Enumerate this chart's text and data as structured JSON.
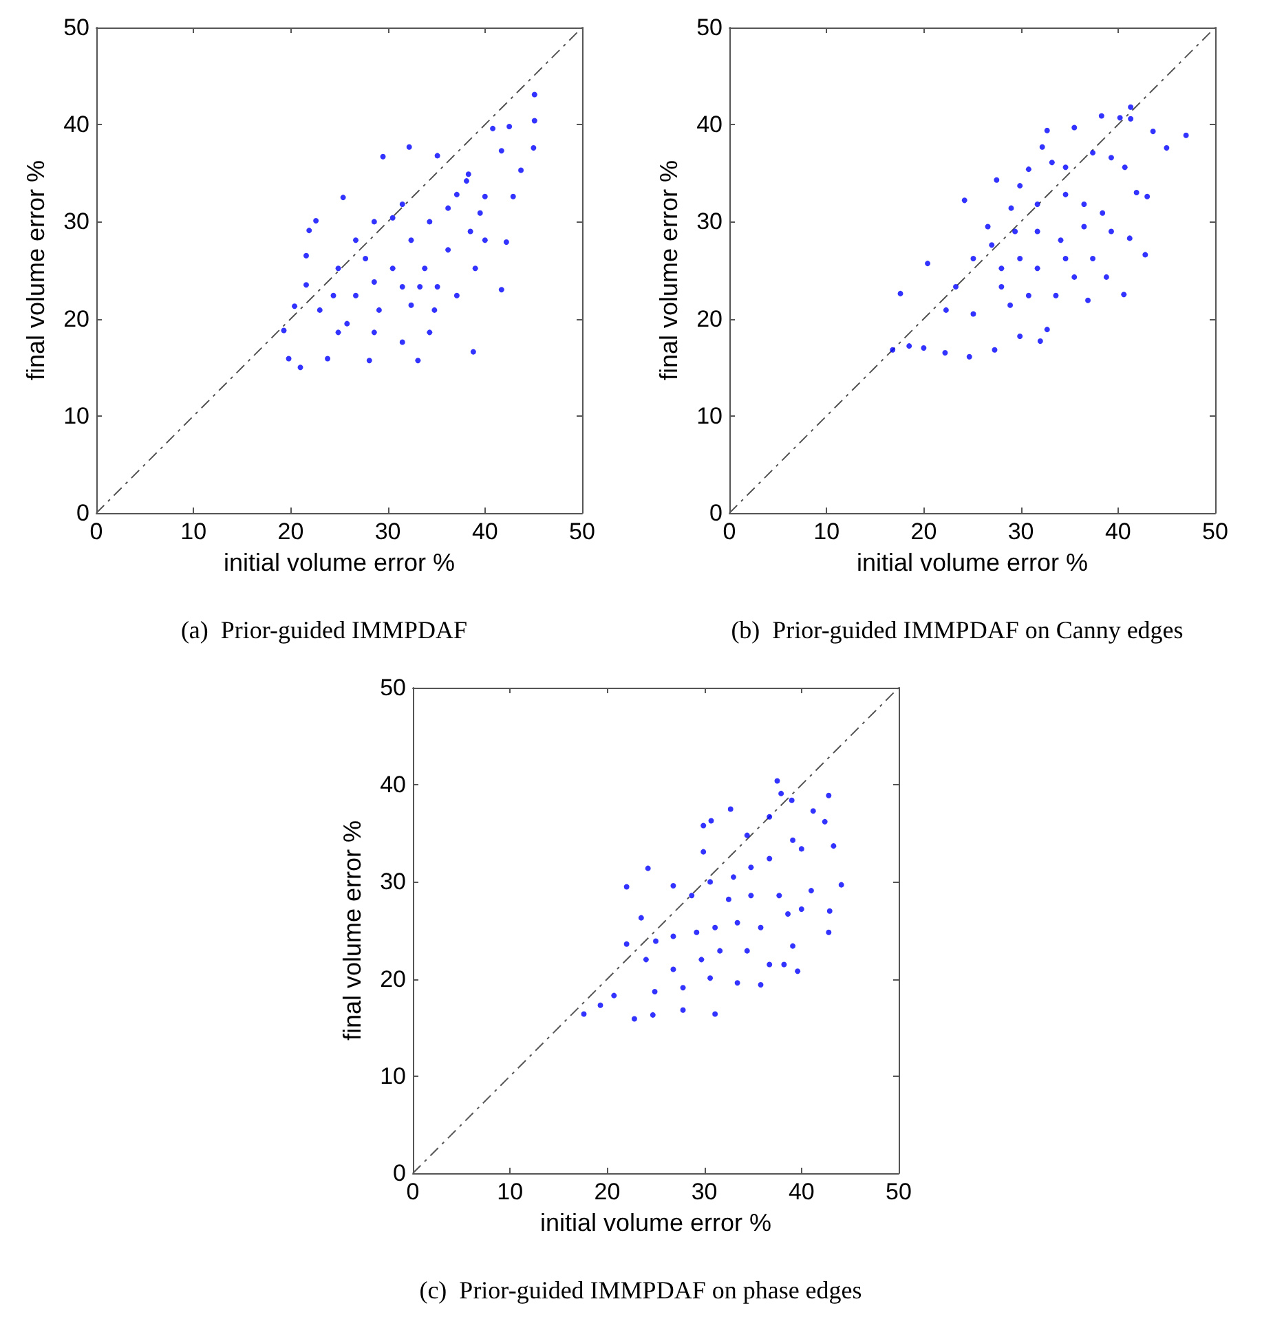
{
  "chart_data": [
    {
      "type": "scatter",
      "title": "(a)  Prior-guided IMMPDAF",
      "xlabel": "initial volume error %",
      "ylabel": "final volume error %",
      "xlim": [
        0,
        50
      ],
      "ylim": [
        0,
        50
      ],
      "xticks": [
        0,
        10,
        20,
        30,
        40,
        50
      ],
      "yticks": [
        0,
        10,
        20,
        30,
        40,
        50
      ],
      "series": [
        {
          "type": "scatter",
          "color": "#0000ff",
          "marker": "circle",
          "x": [
            45.1,
            45.1,
            45.0,
            42.5,
            40.8,
            32.2,
            29.5,
            43.7,
            41.7,
            38.3,
            35.1,
            25.4,
            22.6,
            21.9,
            21.6,
            21.6,
            20.4,
            19.3,
            19.8,
            21.0,
            23.8,
            28.1,
            33.1,
            38.8,
            41.7,
            42.2,
            42.9,
            40.0,
            38.1,
            31.5,
            28.6,
            26.7,
            24.9,
            23.0,
            25.8,
            28.6,
            31.5,
            34.3,
            29.1,
            31.5,
            33.8,
            36.2,
            38.5,
            39.0,
            37.1,
            34.8,
            32.4,
            30.5,
            32.4,
            34.3,
            36.2,
            37.1,
            30.5,
            27.7,
            26.7,
            24.4,
            24.9,
            40.0,
            39.5,
            28.6,
            33.3,
            35.1
          ],
          "values": [
            43.1,
            40.4,
            37.6,
            39.8,
            39.6,
            37.7,
            36.7,
            35.3,
            37.3,
            34.9,
            36.8,
            32.5,
            30.1,
            29.1,
            26.5,
            23.5,
            21.3,
            18.8,
            15.9,
            15.0,
            15.9,
            15.7,
            15.7,
            16.6,
            23.0,
            27.9,
            32.6,
            32.6,
            34.2,
            31.8,
            30.0,
            28.1,
            25.2,
            20.9,
            19.5,
            18.6,
            17.6,
            18.6,
            20.9,
            23.3,
            25.2,
            27.1,
            29.0,
            25.2,
            22.4,
            20.9,
            21.4,
            25.2,
            28.1,
            30.0,
            31.4,
            32.8,
            30.4,
            26.2,
            22.4,
            22.4,
            18.6,
            28.1,
            30.9,
            23.8,
            23.3,
            23.3
          ]
        },
        {
          "type": "line",
          "color": "#555555",
          "marker": "none",
          "line_style": "dashed",
          "x": [
            0,
            50
          ],
          "values": [
            0,
            50
          ]
        }
      ]
    },
    {
      "type": "scatter",
      "title": "(b)  Prior-guided IMMPDAF on Canny edges",
      "xlabel": "initial volume error %",
      "ylabel": "final volume error %",
      "xlim": [
        0,
        50
      ],
      "ylim": [
        0,
        50
      ],
      "xticks": [
        0,
        10,
        20,
        30,
        40,
        50
      ],
      "yticks": [
        0,
        10,
        20,
        30,
        40,
        50
      ],
      "series": [
        {
          "type": "scatter",
          "color": "#0000ff",
          "marker": "circle",
          "x": [
            47.0,
            45.0,
            43.6,
            41.3,
            41.3,
            40.2,
            38.3,
            35.5,
            32.7,
            32.2,
            42.8,
            40.6,
            43.0,
            41.9,
            27.5,
            24.2,
            20.4,
            17.6,
            16.8,
            18.5,
            20.0,
            22.2,
            24.7,
            27.3,
            29.9,
            32.0,
            32.7,
            36.9,
            38.8,
            41.2,
            40.7,
            39.3,
            37.4,
            34.6,
            33.2,
            30.8,
            29.9,
            31.7,
            34.6,
            36.5,
            38.4,
            39.3,
            36.5,
            34.1,
            31.7,
            29.4,
            27.0,
            25.1,
            23.3,
            22.3,
            25.1,
            28.0,
            28.9,
            30.8,
            33.6,
            35.5,
            34.6,
            31.7,
            29.9,
            37.4,
            28.0,
            26.6,
            29.0
          ],
          "values": [
            38.9,
            37.6,
            39.3,
            41.8,
            40.6,
            40.7,
            40.9,
            39.7,
            39.4,
            37.7,
            26.6,
            22.5,
            32.6,
            33.0,
            34.3,
            32.2,
            25.7,
            22.6,
            16.8,
            17.2,
            17.0,
            16.5,
            16.1,
            16.8,
            18.2,
            17.7,
            18.9,
            21.9,
            24.3,
            28.3,
            35.6,
            36.6,
            37.1,
            35.6,
            36.1,
            35.4,
            33.7,
            31.8,
            32.8,
            31.8,
            30.9,
            29.0,
            29.5,
            28.1,
            29.0,
            29.0,
            27.6,
            26.2,
            23.3,
            20.9,
            20.5,
            23.3,
            21.4,
            22.4,
            22.4,
            24.3,
            26.2,
            25.2,
            26.2,
            26.2,
            25.2,
            29.5,
            31.4
          ]
        },
        {
          "type": "line",
          "color": "#555555",
          "marker": "none",
          "line_style": "dashed",
          "x": [
            0,
            50
          ],
          "values": [
            0,
            50
          ]
        }
      ]
    },
    {
      "type": "scatter",
      "title": "(c)  Prior-guided IMMPDAF on phase edges",
      "xlabel": "initial volume error %",
      "ylabel": "final volume error %",
      "xlim": [
        0,
        50
      ],
      "ylim": [
        0,
        50
      ],
      "xticks": [
        0,
        10,
        20,
        30,
        40,
        50
      ],
      "yticks": [
        0,
        10,
        20,
        30,
        40,
        50
      ],
      "series": [
        {
          "type": "scatter",
          "color": "#0000ff",
          "marker": "circle",
          "x": [
            37.5,
            37.9,
            39.0,
            42.8,
            41.2,
            42.4,
            43.3,
            44.1,
            42.9,
            42.8,
            39.6,
            32.7,
            29.9,
            30.7,
            29.9,
            24.2,
            22.0,
            22.0,
            17.6,
            19.3,
            20.7,
            22.8,
            24.7,
            27.8,
            31.1,
            33.4,
            35.8,
            38.2,
            39.1,
            40.0,
            41.0,
            40.0,
            39.1,
            36.7,
            34.4,
            36.7,
            34.8,
            33.0,
            30.6,
            28.7,
            26.8,
            32.5,
            34.8,
            37.7,
            38.6,
            35.8,
            33.4,
            31.1,
            29.2,
            26.8,
            25.0,
            23.5,
            24.0,
            26.8,
            29.7,
            31.6,
            34.4,
            36.7,
            27.8,
            30.6,
            24.9
          ],
          "values": [
            40.4,
            39.1,
            38.4,
            38.9,
            37.3,
            36.2,
            33.7,
            29.7,
            27.0,
            24.8,
            20.8,
            37.5,
            35.8,
            36.3,
            33.1,
            31.4,
            29.5,
            23.6,
            16.4,
            17.3,
            18.3,
            15.9,
            16.3,
            16.8,
            16.4,
            19.6,
            19.4,
            21.5,
            23.4,
            27.2,
            29.1,
            33.4,
            34.3,
            36.7,
            34.8,
            32.4,
            31.5,
            30.5,
            30.0,
            28.6,
            29.6,
            28.2,
            28.6,
            28.6,
            26.7,
            25.3,
            25.8,
            25.3,
            24.8,
            24.4,
            23.9,
            26.3,
            22.0,
            21.0,
            22.0,
            22.9,
            22.9,
            21.5,
            19.1,
            20.1,
            18.7
          ]
        },
        {
          "type": "line",
          "color": "#555555",
          "marker": "none",
          "line_style": "dashed",
          "x": [
            0,
            50
          ],
          "values": [
            0,
            50
          ]
        }
      ]
    }
  ]
}
